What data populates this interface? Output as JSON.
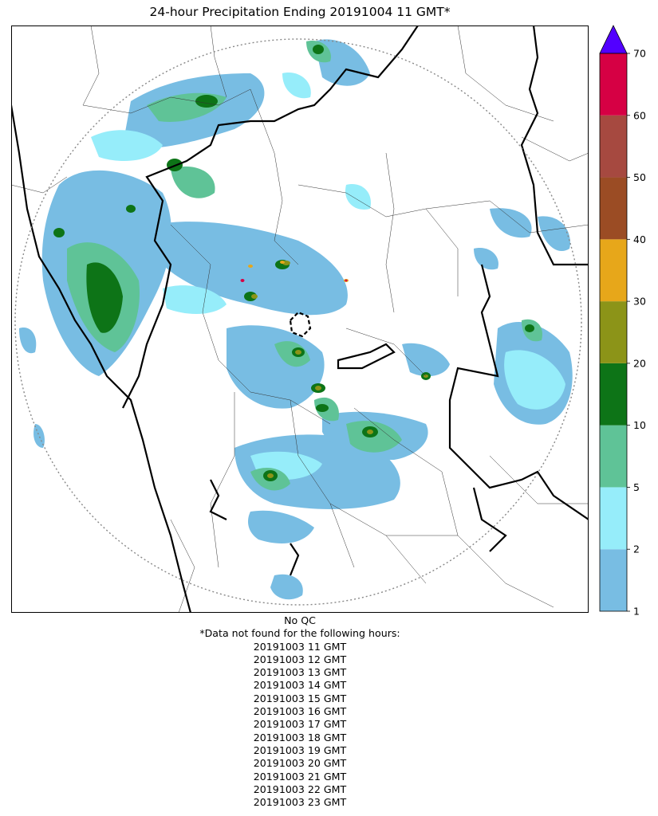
{
  "title": "24-hour Precipitation Ending 20191004 11 GMT*",
  "qc_note": "No QC",
  "missing_header": "*Data not found for the following hours:",
  "missing_hours": [
    "20191003 11 GMT",
    "20191003 12 GMT",
    "20191003 13 GMT",
    "20191003 14 GMT",
    "20191003 15 GMT",
    "20191003 16 GMT",
    "20191003 17 GMT",
    "20191003 18 GMT",
    "20191003 19 GMT",
    "20191003 20 GMT",
    "20191003 21 GMT",
    "20191003 22 GMT",
    "20191003 23 GMT"
  ],
  "colorbar": {
    "levels": [
      1,
      2,
      5,
      10,
      20,
      30,
      40,
      50,
      60,
      70
    ],
    "tick_labels": [
      "1",
      "2",
      "5",
      "10",
      "20",
      "30",
      "40",
      "50",
      "60",
      "70"
    ],
    "colors": [
      "#78bde3",
      "#96edfa",
      "#5fc397",
      "#0d7417",
      "#8c9418",
      "#e7a71a",
      "#9b4c24",
      "#a64940",
      "#d60044"
    ],
    "extend_color": "#5200ff"
  }
}
